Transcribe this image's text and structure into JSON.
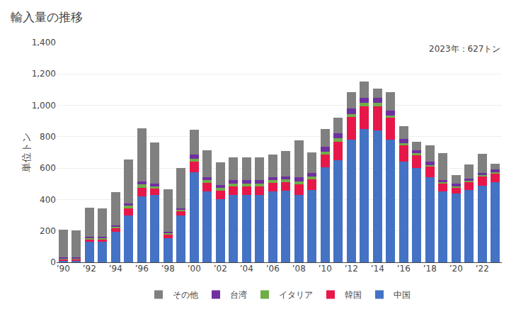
{
  "chart_data": {
    "type": "bar",
    "stacked": true,
    "title": "輸入量の推移",
    "ylabel": "単位トン",
    "annotation": "2023年：627トン",
    "categories": [
      "’90",
      null,
      "’92",
      null,
      "’94",
      null,
      "’96",
      null,
      "’98",
      null,
      "’00",
      null,
      "’02",
      null,
      "’04",
      null,
      "’06",
      null,
      "’08",
      null,
      "’10",
      null,
      "’12",
      null,
      "’14",
      null,
      "’16",
      null,
      "’18",
      null,
      "’20",
      null,
      "’22",
      null
    ],
    "series": [
      {
        "name": "中国",
        "color": "#4472c4",
        "values": [
          10,
          10,
          130,
          130,
          195,
          300,
          420,
          430,
          155,
          300,
          575,
          450,
          400,
          430,
          430,
          430,
          450,
          455,
          430,
          460,
          605,
          650,
          780,
          850,
          840,
          780,
          640,
          600,
          540,
          450,
          440,
          460,
          490,
          510
        ]
      },
      {
        "name": "韓国",
        "color": "#e8174a",
        "values": [
          10,
          10,
          15,
          15,
          20,
          45,
          55,
          40,
          20,
          25,
          65,
          55,
          55,
          55,
          55,
          55,
          55,
          55,
          65,
          70,
          80,
          120,
          145,
          145,
          155,
          140,
          105,
          80,
          70,
          50,
          35,
          50,
          55,
          55
        ]
      },
      {
        "name": "イタリア",
        "color": "#70ad47",
        "values": [
          5,
          5,
          8,
          8,
          10,
          15,
          20,
          15,
          10,
          10,
          20,
          18,
          18,
          18,
          18,
          18,
          18,
          18,
          20,
          15,
          20,
          20,
          20,
          20,
          20,
          15,
          15,
          15,
          10,
          10,
          10,
          10,
          10,
          10
        ]
      },
      {
        "name": "台湾",
        "color": "#7030a0",
        "values": [
          5,
          5,
          10,
          10,
          10,
          15,
          20,
          15,
          10,
          10,
          25,
          20,
          20,
          20,
          20,
          20,
          20,
          20,
          25,
          25,
          30,
          30,
          35,
          35,
          35,
          30,
          25,
          20,
          20,
          15,
          15,
          15,
          15,
          15
        ]
      },
      {
        "name": "その他",
        "color": "#808080",
        "values": [
          180,
          175,
          185,
          180,
          210,
          280,
          340,
          265,
          270,
          255,
          160,
          170,
          145,
          145,
          145,
          145,
          145,
          160,
          235,
          130,
          115,
          100,
          105,
          100,
          55,
          120,
          80,
          55,
          105,
          170,
          55,
          90,
          120,
          37
        ]
      }
    ],
    "ylim": [
      0,
      1400
    ],
    "yticks": [
      0,
      200,
      400,
      600,
      800,
      {
        "value": 1000,
        "label": "1,000"
      },
      {
        "value": 1200,
        "label": "1,200"
      },
      {
        "value": 1400,
        "label": "1,400"
      }
    ],
    "grid": true,
    "legend": "bottom"
  }
}
